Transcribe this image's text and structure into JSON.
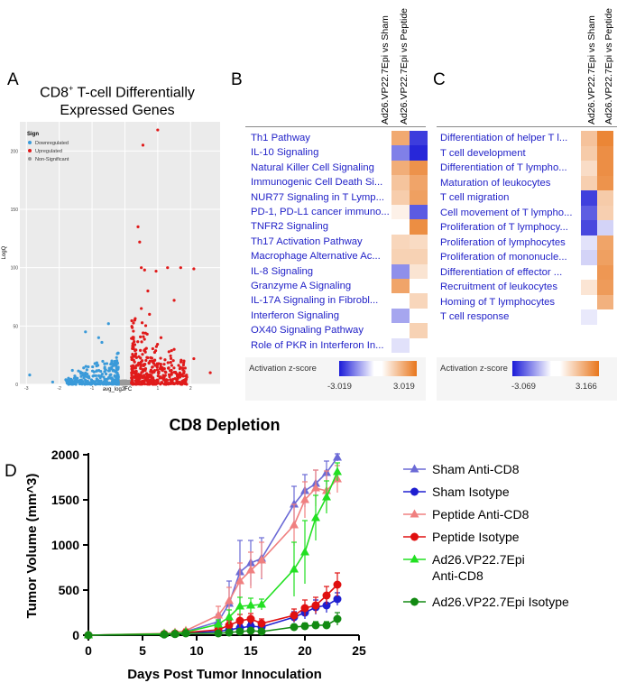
{
  "panels": {
    "a": "A",
    "b": "B",
    "c": "C",
    "d": "D"
  },
  "panel_a": {
    "title_line1": "CD8",
    "title_sup": "+",
    "title_line1_rest": " T-cell Differentially",
    "title_line2": "Expressed Genes",
    "legend_title": "Sign",
    "legend_items": [
      {
        "label": "Downregulated",
        "color": "#3a9ad9"
      },
      {
        "label": "Upregulated",
        "color": "#e01a1a"
      },
      {
        "label": "Non-Significant",
        "color": "#9a9a9a"
      }
    ],
    "xlabel": "avg_log2FC",
    "ylabel": "LogQ",
    "xticks": [
      "-3",
      "-2",
      "-1",
      "0",
      "1",
      "2"
    ],
    "yticks": [
      "0",
      "50",
      "100",
      "150",
      "200"
    ]
  },
  "panel_b": {
    "col_headers": [
      "Ad26.VP22.7Epi vs Sham",
      "Ad26.VP22.7Epi vs Peptide"
    ],
    "rows": [
      {
        "label": "Th1 Pathway",
        "v": [
          1.9,
          -2.6
        ]
      },
      {
        "label": "IL-10 Signaling",
        "v": [
          -1.7,
          -2.9
        ]
      },
      {
        "label": "Natural Killer Cell Signaling",
        "v": [
          1.8,
          2.4
        ]
      },
      {
        "label": "Immunogenic Cell Death Si...",
        "v": [
          1.3,
          2.0
        ]
      },
      {
        "label": "NUR77 Signaling in T Lymp...",
        "v": [
          1.1,
          2.1
        ]
      },
      {
        "label": "PD-1, PD-L1 cancer immuno...",
        "v": [
          0.3,
          -2.2
        ]
      },
      {
        "label": "TNFR2 Signaling",
        "v": [
          null,
          2.5
        ]
      },
      {
        "label": "Th17 Activation Pathway",
        "v": [
          0.9,
          0.8
        ]
      },
      {
        "label": "Macrophage Alternative Ac...",
        "v": [
          1.0,
          1.0
        ]
      },
      {
        "label": "IL-8 Signaling",
        "v": [
          -1.5,
          0.6
        ]
      },
      {
        "label": "Granzyme A Signaling",
        "v": [
          2.0,
          null
        ]
      },
      {
        "label": "IL-17A Signaling in Fibrobl...",
        "v": [
          null,
          0.9
        ]
      },
      {
        "label": "Interferon Signaling",
        "v": [
          -1.2,
          null
        ]
      },
      {
        "label": "OX40 Signaling Pathway",
        "v": [
          null,
          1.0
        ]
      },
      {
        "label": "Role of PKR in Interferon In...",
        "v": [
          -0.4,
          null
        ]
      }
    ],
    "legend_label": "Activation z-score",
    "min_label": "-3.019",
    "max_label": "3.019",
    "min": -3.019,
    "max": 3.019
  },
  "panel_c": {
    "col_headers": [
      "Ad26.VP22.7Epi vs Sham",
      "Ad26.VP22.7Epi vs Peptide"
    ],
    "rows": [
      {
        "label": "Differentiation of helper T l...",
        "v": [
          1.4,
          2.8
        ]
      },
      {
        "label": "T cell development",
        "v": [
          1.2,
          2.6
        ]
      },
      {
        "label": "Differentiation of T lympho...",
        "v": [
          0.8,
          2.6
        ]
      },
      {
        "label": "Maturation of leukocytes",
        "v": [
          1.1,
          2.5
        ]
      },
      {
        "label": "T cell migration",
        "v": [
          -2.6,
          1.2
        ]
      },
      {
        "label": "Cell movement of T lympho...",
        "v": [
          -2.2,
          1.1
        ]
      },
      {
        "label": "Proliferation of T lymphocy...",
        "v": [
          -2.5,
          -0.6
        ]
      },
      {
        "label": "Proliferation of lymphocytes",
        "v": [
          -0.4,
          2.1
        ]
      },
      {
        "label": "Proliferation of mononucle...",
        "v": [
          -0.6,
          2.2
        ]
      },
      {
        "label": "Differentiation of effector ...",
        "v": [
          null,
          2.4
        ]
      },
      {
        "label": "Recruitment of leukocytes",
        "v": [
          0.6,
          2.3
        ]
      },
      {
        "label": "Homing of T lymphocytes",
        "v": [
          null,
          1.8
        ]
      },
      {
        "label": "T cell response",
        "v": [
          -0.3,
          null
        ]
      }
    ],
    "legend_label": "Activation z-score",
    "min_label": "-3.069",
    "max_label": "3.166",
    "min": -3.069,
    "max": 3.166
  },
  "panel_d_text": {
    "title": "CD8 Depletion",
    "ylabel": "Tumor Volume (mm^3)",
    "xlabel": "Days Post Tumor Innoculation"
  },
  "chart_data": {
    "type": "line",
    "title": "CD8 Depletion",
    "xlabel": "Days Post Tumor Innoculation",
    "ylabel": "Tumor Volume (mm^3)",
    "xlim": [
      0,
      25
    ],
    "ylim": [
      0,
      2000
    ],
    "xticks": [
      0,
      5,
      10,
      15,
      20,
      25
    ],
    "yticks": [
      0,
      500,
      1000,
      1500,
      2000
    ],
    "x": [
      0,
      7,
      8,
      9,
      12,
      13,
      14,
      15,
      16,
      19,
      20,
      21,
      22,
      23
    ],
    "series": [
      {
        "name": "Sham Anti-CD8",
        "color": "#6b6ad6",
        "marker": "triangle",
        "values": [
          0,
          15,
          25,
          40,
          150,
          350,
          700,
          800,
          850,
          1450,
          1600,
          1680,
          1800,
          1970
        ],
        "errors": [
          0,
          5,
          10,
          15,
          80,
          250,
          350,
          250,
          230,
          200,
          180,
          150,
          130,
          40
        ]
      },
      {
        "name": "Sham Isotype",
        "color": "#1f1fd0",
        "marker": "circle",
        "values": [
          0,
          10,
          15,
          25,
          40,
          60,
          80,
          100,
          90,
          200,
          250,
          310,
          330,
          400
        ],
        "errors": [
          0,
          5,
          8,
          10,
          20,
          30,
          40,
          40,
          30,
          60,
          70,
          80,
          80,
          70
        ]
      },
      {
        "name": "Peptide Anti-CD8",
        "color": "#f08080",
        "marker": "triangle",
        "values": [
          0,
          20,
          30,
          50,
          220,
          380,
          600,
          720,
          830,
          1220,
          1500,
          1630,
          1600,
          1730
        ],
        "errors": [
          0,
          8,
          12,
          20,
          100,
          150,
          200,
          200,
          200,
          230,
          200,
          200,
          220,
          150
        ]
      },
      {
        "name": "Peptide Isotype",
        "color": "#e01010",
        "marker": "circle",
        "values": [
          0,
          12,
          18,
          30,
          60,
          110,
          160,
          180,
          130,
          220,
          300,
          330,
          440,
          560
        ],
        "errors": [
          0,
          6,
          8,
          12,
          30,
          50,
          70,
          60,
          50,
          70,
          90,
          90,
          100,
          130
        ]
      },
      {
        "name": "Ad26.VP22.7Epi Anti-CD8",
        "color": "#22e022",
        "marker": "triangle",
        "values": [
          0,
          15,
          20,
          35,
          120,
          200,
          320,
          330,
          340,
          730,
          920,
          1300,
          1530,
          1810
        ],
        "errors": [
          0,
          6,
          8,
          15,
          50,
          80,
          100,
          80,
          60,
          300,
          350,
          250,
          180,
          100
        ]
      },
      {
        "name": "Ad26.VP22.7Epi Isotype",
        "color": "#128a12",
        "marker": "circle",
        "values": [
          0,
          8,
          12,
          20,
          20,
          30,
          40,
          50,
          40,
          90,
          100,
          110,
          110,
          180
        ],
        "errors": [
          0,
          4,
          5,
          8,
          10,
          15,
          20,
          20,
          15,
          30,
          35,
          40,
          40,
          70
        ]
      }
    ],
    "legend": [
      {
        "label1": "Sham Anti-CD8",
        "label2": ""
      },
      {
        "label1": "Sham Isotype",
        "label2": ""
      },
      {
        "label1": "Peptide Anti-CD8",
        "label2": ""
      },
      {
        "label1": "Peptide Isotype",
        "label2": ""
      },
      {
        "label1": "Ad26.VP22.7Epi",
        "label2": "Anti-CD8"
      },
      {
        "label1": "Ad26.VP22.7Epi Isotype",
        "label2": ""
      }
    ]
  }
}
